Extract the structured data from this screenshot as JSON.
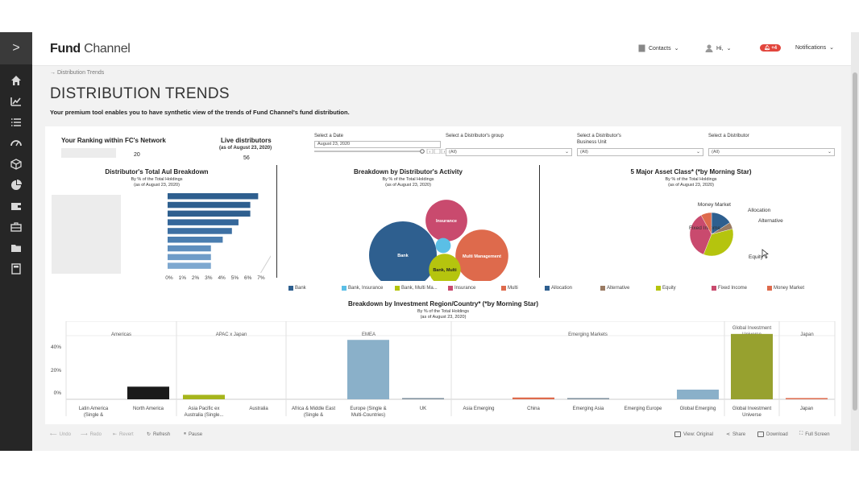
{
  "header": {
    "logo_main": "Fund",
    "logo_sub": "Channel",
    "contacts_label": "Contacts",
    "user_label": "Hi,",
    "notifications_badge": "+4",
    "notifications_label": "Notifications"
  },
  "sidebar": {
    "toggle": ">",
    "icons": [
      "home-icon",
      "line-chart-icon",
      "list-icon",
      "gauge-icon",
      "cube-icon",
      "pie-icon",
      "wallet-icon",
      "briefcase-icon",
      "folder-icon",
      "calculator-icon"
    ]
  },
  "page": {
    "breadcrumb": "→ Distribution Trends",
    "title": "DISTRIBUTION TRENDS",
    "subtitle": "Your premium tool enables you to have synthetic view of the trends of Fund Channel's fund distribution."
  },
  "kpis": {
    "ranking_title": "Your Ranking within FC's Network",
    "ranking_value": "20",
    "live_title": "Live distributors",
    "live_sub": "(as of August 23, 2020)",
    "live_value": "56"
  },
  "filters": {
    "date_label": "Select a Date",
    "date_value": "August 23, 2020",
    "group_label": "Select a Distributor's group",
    "group_value": "(All)",
    "unit_label_1": "Select a Distributor's",
    "unit_label_2": "Business Unit",
    "unit_value": "(All)",
    "distributor_label": "Select a Distributor",
    "distributor_value": "(All)"
  },
  "chart_data": [
    {
      "type": "bar",
      "orientation": "horizontal",
      "title": "Distributor's Total AuI Breakdown",
      "subtitle": "By % of the Total Holdings",
      "as_of": "(as of August 23, 2020)",
      "values": [
        6.9,
        6.3,
        6.3,
        5.4,
        4.9,
        4.2,
        3.3,
        3.3,
        3.3
      ],
      "colors": [
        "#2e5f8f",
        "#2e5f8f",
        "#2e5f8f",
        "#35679a",
        "#3d70a3",
        "#4b7eb0",
        "#5f8fbe",
        "#6f9cc8",
        "#7ea8d0"
      ],
      "xticks": [
        "0%",
        "1%",
        "2%",
        "3%",
        "4%",
        "5%",
        "6%",
        "7%"
      ],
      "xlim": [
        0,
        7
      ]
    },
    {
      "type": "bubble",
      "title": "Breakdown by Distributor's Activity",
      "subtitle": "By % of the Total Holdings",
      "as_of": "(as of August 23, 2020)",
      "bubbles": [
        {
          "label": "Bank",
          "value": 100,
          "color": "#2e5f8f"
        },
        {
          "label": "Multi Management",
          "value": 61,
          "color": "#de6a4c"
        },
        {
          "label": "Insurance",
          "value": 38,
          "color": "#c94a6e"
        },
        {
          "label": "Bank, Multi",
          "value": 22,
          "color": "#b5c40e"
        },
        {
          "label": "",
          "value": 5,
          "color": "#5bbfe6"
        }
      ],
      "legend": [
        {
          "label": "Bank",
          "color": "#2e5f8f"
        },
        {
          "label": "Bank, Insurance",
          "color": "#5bbfe6"
        },
        {
          "label": "Bank, Multi Ma...",
          "color": "#b5c40e"
        },
        {
          "label": "Insurance",
          "color": "#c94a6e"
        },
        {
          "label": "Multi",
          "color": "#de6a4c"
        }
      ]
    },
    {
      "type": "pie",
      "title": "5 Major Asset Class* (*by Morning Star)",
      "subtitle": "By % of the Total Holdings",
      "as_of": "(as of August 23, 2020)",
      "slices": [
        {
          "label": "Allocation",
          "value": 16,
          "color": "#2e5f8f"
        },
        {
          "label": "Alternative",
          "value": 5,
          "color": "#9a7b63"
        },
        {
          "label": "Equity",
          "value": 35,
          "color": "#b5c40e"
        },
        {
          "label": "Fixed Income",
          "value": 36,
          "color": "#c94a6e"
        },
        {
          "label": "Money Market",
          "value": 8,
          "color": "#de6a4c"
        }
      ],
      "legend": [
        {
          "label": "Allocation",
          "color": "#2e5f8f"
        },
        {
          "label": "Alternative",
          "color": "#9a7b63"
        },
        {
          "label": "Equity",
          "color": "#b5c40e"
        },
        {
          "label": "Fixed Income",
          "color": "#c94a6e"
        },
        {
          "label": "Money Market",
          "color": "#de6a4c"
        }
      ]
    },
    {
      "type": "bar",
      "title": "Breakdown by Investment Region/Country* (*by Morning Star)",
      "subtitle": "By % of the Total Holdings",
      "as_of": "(as of August 23, 2020)",
      "ylim": [
        0,
        45
      ],
      "yticks": [
        "40%",
        "20%",
        "0%"
      ],
      "groups": [
        {
          "name": "Americas",
          "items": [
            {
              "label": "Latin America (Single & Multi-Countries)",
              "value": 0,
              "color": "#1a1a1a"
            },
            {
              "label": "North America",
              "value": 8.5,
              "color": "#1a1a1a"
            }
          ]
        },
        {
          "name": "APAC x Japan",
          "items": [
            {
              "label": "Asia Pacific ex Australia (Single...",
              "value": 3,
              "color": "#a6b51c"
            },
            {
              "label": "Australia",
              "value": 0,
              "color": "#a6b51c"
            }
          ]
        },
        {
          "name": "EMEA",
          "items": [
            {
              "label": "Africa & Middle East (Single & Multi-Cou...",
              "value": 0,
              "color": "#8ab0c9"
            },
            {
              "label": "Europe (Single & Multi-Countries)",
              "value": 40,
              "color": "#8ab0c9"
            },
            {
              "label": "UK",
              "value": 0.6,
              "color": "#7d8f9c"
            }
          ]
        },
        {
          "name": "Emerging Markets",
          "items": [
            {
              "label": "Asia Emerging",
              "value": 0,
              "color": "#de6a4c"
            },
            {
              "label": "China",
              "value": 1.2,
              "color": "#de6a4c"
            },
            {
              "label": "Emerging Asia",
              "value": 0.5,
              "color": "#7d8f9c"
            },
            {
              "label": "Emerging Europe",
              "value": 0,
              "color": "#7d8f9c"
            },
            {
              "label": "Global Emerging",
              "value": 6.5,
              "color": "#8ab0c9"
            }
          ]
        },
        {
          "name": "Global Investment Universe",
          "items": [
            {
              "label": "Global Investment Universe",
              "value": 44,
              "color": "#97a12f"
            }
          ]
        },
        {
          "name": "Japan",
          "items": [
            {
              "label": "Japan",
              "value": 0.8,
              "color": "#de6a4c"
            }
          ]
        }
      ]
    }
  ],
  "toolbar": {
    "undo": "Undo",
    "redo": "Redo",
    "revert": "Revert",
    "refresh": "Refresh",
    "pause": "Pause",
    "view": "View: Original",
    "share": "Share",
    "download": "Download",
    "fullscreen": "Full Screen"
  }
}
